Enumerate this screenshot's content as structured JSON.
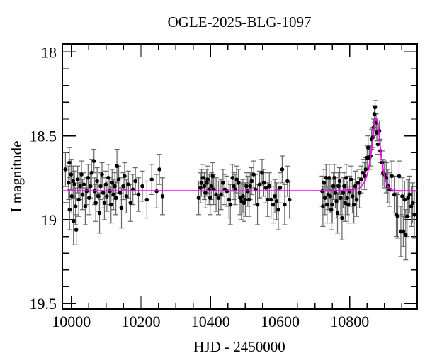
{
  "chart_data": {
    "type": "scatter",
    "title": "OGLE-2025-BLG-1097",
    "xlabel": "HJD - 2450000",
    "ylabel": "I magnitude",
    "xlim": [
      9974,
      10994
    ],
    "ylim_top": 17.952,
    "ylim_bottom": 19.533,
    "grid": false,
    "legend": "none",
    "x_ticks": [
      {
        "value": 10000,
        "label": "10000"
      },
      {
        "value": 10200,
        "label": "10200"
      },
      {
        "value": 10400,
        "label": "10400"
      },
      {
        "value": 10600,
        "label": "10600"
      },
      {
        "value": 10800,
        "label": "10800"
      }
    ],
    "y_ticks": [
      {
        "value": 18.0,
        "label": "18"
      },
      {
        "value": 18.5,
        "label": "18.5"
      },
      {
        "value": 19.0,
        "label": "19"
      },
      {
        "value": 19.5,
        "label": "19.5"
      }
    ],
    "x_minor_step": 50,
    "y_minor_step": 0.1,
    "colors": {
      "frame": "#000000",
      "point": "#000000",
      "error_bar": "#666666",
      "model_line": "#ff00ff",
      "background": "#ffffff"
    },
    "series": [
      {
        "name": "I-band observations",
        "kind": "errorbar_scatter",
        "points": [
          [
            9983,
            18.7,
            0.1
          ],
          [
            9992,
            18.78,
            0.1
          ],
          [
            9994,
            18.66,
            0.09
          ],
          [
            9995,
            18.94,
            0.12
          ],
          [
            9999,
            18.73,
            0.09
          ],
          [
            10001,
            18.86,
            0.1
          ],
          [
            10005,
            18.77,
            0.09
          ],
          [
            10006,
            19.01,
            0.14
          ],
          [
            10009,
            18.79,
            0.08
          ],
          [
            10012,
            18.92,
            0.11
          ],
          [
            10014,
            19.06,
            0.09
          ],
          [
            10018,
            18.76,
            0.08
          ],
          [
            10021,
            18.88,
            0.1
          ],
          [
            10025,
            18.8,
            0.08
          ],
          [
            10029,
            18.73,
            0.08
          ],
          [
            10032,
            18.85,
            0.09
          ],
          [
            10036,
            18.79,
            0.07
          ],
          [
            10040,
            18.92,
            0.11
          ],
          [
            10044,
            18.83,
            0.08
          ],
          [
            10048,
            18.75,
            0.08
          ],
          [
            10051,
            18.87,
            0.1
          ],
          [
            10055,
            18.8,
            0.07
          ],
          [
            10058,
            18.72,
            0.08
          ],
          [
            10065,
            18.65,
            0.07
          ],
          [
            10067,
            18.83,
            0.08
          ],
          [
            10070,
            18.9,
            0.11
          ],
          [
            10074,
            18.77,
            0.08
          ],
          [
            10077,
            18.86,
            0.09
          ],
          [
            10081,
            18.96,
            0.12
          ],
          [
            10084,
            18.8,
            0.08
          ],
          [
            10088,
            18.73,
            0.07
          ],
          [
            10091,
            18.84,
            0.09
          ],
          [
            10095,
            18.9,
            0.1
          ],
          [
            10099,
            18.79,
            0.08
          ],
          [
            10102,
            18.86,
            0.09
          ],
          [
            10106,
            18.75,
            0.08
          ],
          [
            10110,
            18.83,
            0.08
          ],
          [
            10114,
            18.91,
            0.11
          ],
          [
            10117,
            18.78,
            0.08
          ],
          [
            10121,
            18.85,
            0.09
          ],
          [
            10125,
            18.8,
            0.08
          ],
          [
            10128,
            18.87,
            0.1
          ],
          [
            10131,
            18.68,
            0.1
          ],
          [
            10136,
            18.76,
            0.08
          ],
          [
            10140,
            18.84,
            0.09
          ],
          [
            10144,
            18.93,
            0.12
          ],
          [
            10149,
            18.8,
            0.08
          ],
          [
            10153,
            18.74,
            0.08
          ],
          [
            10158,
            18.86,
            0.1
          ],
          [
            10164,
            18.79,
            0.08
          ],
          [
            10170,
            18.9,
            0.11
          ],
          [
            10177,
            18.82,
            0.09
          ],
          [
            10184,
            18.77,
            0.08
          ],
          [
            10193,
            18.85,
            0.1
          ],
          [
            10204,
            18.8,
            0.09
          ],
          [
            10217,
            18.88,
            0.11
          ],
          [
            10231,
            18.76,
            0.09
          ],
          [
            10245,
            18.83,
            0.1
          ],
          [
            10253,
            18.7,
            0.09
          ],
          [
            10262,
            18.86,
            0.11
          ],
          [
            10366,
            18.87,
            0.1
          ],
          [
            10371,
            18.81,
            0.09
          ],
          [
            10374,
            18.78,
            0.08
          ],
          [
            10378,
            18.75,
            0.08
          ],
          [
            10382,
            18.8,
            0.08
          ],
          [
            10385,
            18.84,
            0.09
          ],
          [
            10389,
            18.78,
            0.08
          ],
          [
            10392,
            18.76,
            0.08
          ],
          [
            10396,
            18.82,
            0.09
          ],
          [
            10399,
            18.87,
            0.1
          ],
          [
            10403,
            18.8,
            0.08
          ],
          [
            10406,
            18.74,
            0.08
          ],
          [
            10409,
            18.82,
            0.09
          ],
          [
            10416,
            18.85,
            0.1
          ],
          [
            10423,
            18.87,
            0.1
          ],
          [
            10430,
            18.85,
            0.09
          ],
          [
            10436,
            18.78,
            0.08
          ],
          [
            10441,
            18.82,
            0.09
          ],
          [
            10447,
            18.83,
            0.09
          ],
          [
            10453,
            18.88,
            0.11
          ],
          [
            10457,
            18.91,
            0.12
          ],
          [
            10463,
            18.75,
            0.08
          ],
          [
            10467,
            18.8,
            0.08
          ],
          [
            10471,
            18.82,
            0.09
          ],
          [
            10475,
            18.76,
            0.08
          ],
          [
            10480,
            18.78,
            0.08
          ],
          [
            10485,
            18.87,
            0.1
          ],
          [
            10489,
            18.89,
            0.11
          ],
          [
            10493,
            18.86,
            0.1
          ],
          [
            10496,
            18.9,
            0.11
          ],
          [
            10500,
            18.88,
            0.1
          ],
          [
            10503,
            18.8,
            0.08
          ],
          [
            10507,
            18.83,
            0.09
          ],
          [
            10511,
            18.88,
            0.1
          ],
          [
            10514,
            18.8,
            0.08
          ],
          [
            10518,
            18.77,
            0.08
          ],
          [
            10524,
            18.73,
            0.08
          ],
          [
            10529,
            18.82,
            0.09
          ],
          [
            10535,
            18.91,
            0.12
          ],
          [
            10541,
            18.79,
            0.08
          ],
          [
            10548,
            18.72,
            0.08
          ],
          [
            10553,
            18.78,
            0.08
          ],
          [
            10559,
            18.81,
            0.09
          ],
          [
            10564,
            18.88,
            0.1
          ],
          [
            10569,
            18.8,
            0.08
          ],
          [
            10574,
            18.88,
            0.11
          ],
          [
            10580,
            18.91,
            0.11
          ],
          [
            10585,
            18.86,
            0.1
          ],
          [
            10590,
            18.89,
            0.11
          ],
          [
            10595,
            18.94,
            0.12
          ],
          [
            10600,
            18.81,
            0.09
          ],
          [
            10606,
            18.7,
            0.08
          ],
          [
            10613,
            18.91,
            0.12
          ],
          [
            10621,
            18.77,
            0.09
          ],
          [
            10627,
            18.88,
            0.11
          ],
          [
            10721,
            18.83,
            0.09
          ],
          [
            10723,
            18.92,
            0.12
          ],
          [
            10726,
            18.78,
            0.08
          ],
          [
            10729,
            18.87,
            0.1
          ],
          [
            10732,
            18.75,
            0.08
          ],
          [
            10735,
            18.91,
            0.11
          ],
          [
            10738,
            18.85,
            0.09
          ],
          [
            10741,
            18.75,
            0.08
          ],
          [
            10744,
            18.86,
            0.1
          ],
          [
            10747,
            18.94,
            0.12
          ],
          [
            10750,
            18.91,
            0.11
          ],
          [
            10753,
            18.8,
            0.08
          ],
          [
            10756,
            18.75,
            0.08
          ],
          [
            10759,
            18.84,
            0.09
          ],
          [
            10762,
            18.89,
            0.1
          ],
          [
            10765,
            18.96,
            0.12
          ],
          [
            10768,
            18.8,
            0.08
          ],
          [
            10771,
            18.77,
            0.08
          ],
          [
            10774,
            18.87,
            0.1
          ],
          [
            10778,
            18.99,
            0.13
          ],
          [
            10781,
            18.84,
            0.09
          ],
          [
            10784,
            18.8,
            0.08
          ],
          [
            10787,
            18.9,
            0.11
          ],
          [
            10790,
            18.75,
            0.08
          ],
          [
            10793,
            18.87,
            0.1
          ],
          [
            10796,
            18.91,
            0.11
          ],
          [
            10800,
            18.83,
            0.09
          ],
          [
            10804,
            18.76,
            0.08
          ],
          [
            10808,
            18.86,
            0.1
          ],
          [
            10812,
            18.91,
            0.11
          ],
          [
            10816,
            18.8,
            0.09
          ],
          [
            10820,
            18.88,
            0.1
          ],
          [
            10824,
            18.78,
            0.08
          ],
          [
            10828,
            18.84,
            0.09
          ],
          [
            10833,
            18.76,
            0.08
          ],
          [
            10838,
            18.72,
            0.08
          ],
          [
            10843,
            18.74,
            0.08
          ],
          [
            10846,
            18.7,
            0.07
          ],
          [
            10850,
            18.63,
            0.07
          ],
          [
            10853,
            18.57,
            0.07
          ],
          [
            10857,
            18.63,
            0.07
          ],
          [
            10860,
            18.62,
            0.06
          ],
          [
            10863,
            18.52,
            0.06
          ],
          [
            10866,
            18.51,
            0.06
          ],
          [
            10869,
            18.45,
            0.05
          ],
          [
            10871,
            18.37,
            0.05
          ],
          [
            10873,
            18.33,
            0.04
          ],
          [
            10876,
            18.42,
            0.05
          ],
          [
            10878,
            18.48,
            0.05
          ],
          [
            10881,
            18.55,
            0.06
          ],
          [
            10885,
            18.47,
            0.06
          ],
          [
            10888,
            18.59,
            0.07
          ],
          [
            10893,
            18.66,
            0.07
          ],
          [
            10896,
            18.72,
            0.08
          ],
          [
            10900,
            18.73,
            0.08
          ],
          [
            10905,
            18.75,
            0.09
          ],
          [
            10910,
            18.8,
            0.1
          ],
          [
            10915,
            18.82,
            0.1
          ],
          [
            10921,
            18.74,
            0.09
          ],
          [
            10928,
            18.85,
            0.11
          ],
          [
            10934,
            18.97,
            0.13
          ],
          [
            10938,
            18.98,
            0.13
          ],
          [
            10942,
            18.74,
            0.09
          ],
          [
            10947,
            19.07,
            0.15
          ],
          [
            10951,
            18.86,
            0.11
          ],
          [
            10954,
            19.07,
            0.09
          ],
          [
            10958,
            18.88,
            0.11
          ],
          [
            10961,
            19.09,
            0.15
          ],
          [
            10965,
            18.98,
            0.12
          ],
          [
            10968,
            18.87,
            0.11
          ],
          [
            10972,
            18.85,
            0.11
          ],
          [
            10977,
            18.92,
            0.12
          ],
          [
            10981,
            18.9,
            0.12
          ],
          [
            10986,
            18.97,
            0.14
          ]
        ]
      },
      {
        "name": "microlensing model",
        "kind": "line",
        "points": [
          [
            9974,
            18.827
          ],
          [
            10600,
            18.827
          ],
          [
            10700,
            18.827
          ],
          [
            10760,
            18.826
          ],
          [
            10800,
            18.824
          ],
          [
            10815,
            18.82
          ],
          [
            10825,
            18.815
          ],
          [
            10832,
            18.805
          ],
          [
            10838,
            18.79
          ],
          [
            10844,
            18.77
          ],
          [
            10849,
            18.74
          ],
          [
            10854,
            18.7
          ],
          [
            10858,
            18.655
          ],
          [
            10862,
            18.6
          ],
          [
            10866,
            18.53
          ],
          [
            10869,
            18.47
          ],
          [
            10872,
            18.42
          ],
          [
            10874,
            18.4
          ],
          [
            10876,
            18.395
          ],
          [
            10878,
            18.4
          ],
          [
            10880,
            18.42
          ],
          [
            10883,
            18.46
          ],
          [
            10886,
            18.52
          ],
          [
            10890,
            18.6
          ],
          [
            10894,
            18.67
          ],
          [
            10898,
            18.72
          ],
          [
            10902,
            18.76
          ],
          [
            10907,
            18.79
          ],
          [
            10912,
            18.81
          ],
          [
            10918,
            18.82
          ],
          [
            10925,
            18.824
          ],
          [
            10935,
            18.826
          ],
          [
            10950,
            18.827
          ],
          [
            10994,
            18.827
          ]
        ]
      }
    ]
  }
}
